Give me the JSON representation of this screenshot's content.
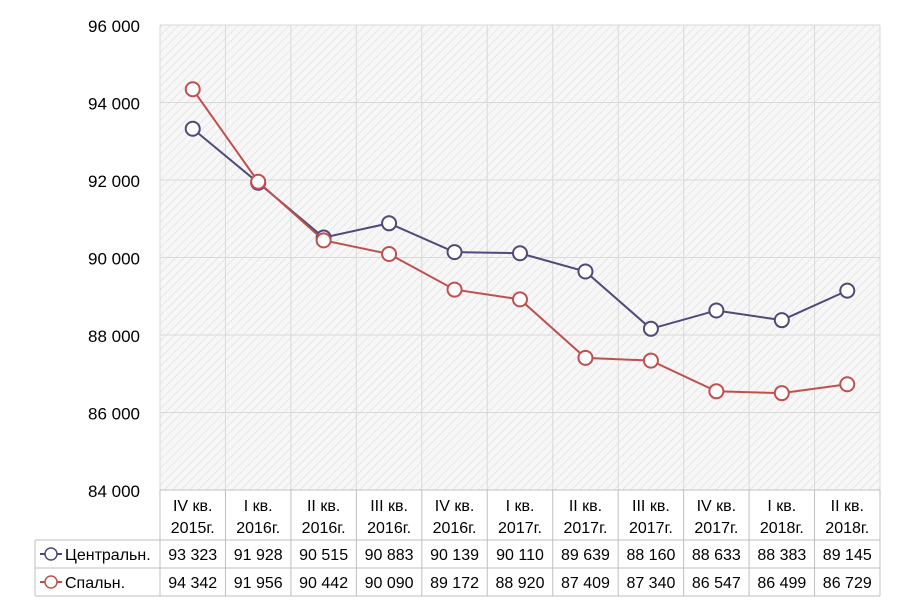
{
  "chart_data": {
    "type": "line",
    "title": "",
    "xlabel": "",
    "ylabel": "",
    "ylim": [
      84000,
      96000
    ],
    "yticks": [
      84000,
      86000,
      88000,
      90000,
      92000,
      94000,
      96000
    ],
    "ytick_labels": [
      "84 000",
      "86 000",
      "88 000",
      "90 000",
      "92 000",
      "94 000",
      "96 000"
    ],
    "grid": true,
    "legend": "data-table",
    "categories": [
      [
        "IV кв.",
        "2015г."
      ],
      [
        "I кв.",
        "2016г."
      ],
      [
        "II кв.",
        "2016г."
      ],
      [
        "III кв.",
        "2016г."
      ],
      [
        "IV кв.",
        "2016г."
      ],
      [
        "I кв.",
        "2017г."
      ],
      [
        "II кв.",
        "2017г."
      ],
      [
        "III кв.",
        "2017г."
      ],
      [
        "IV кв.",
        "2017г."
      ],
      [
        "I кв.",
        "2018г."
      ],
      [
        "II кв.",
        "2018г."
      ]
    ],
    "series": [
      {
        "name": "Центральн.",
        "color": "#4f4a7a",
        "values": [
          93323,
          91928,
          90515,
          90883,
          90139,
          90110,
          89639,
          88160,
          88633,
          88383,
          89145
        ],
        "labels": [
          "93 323",
          "91 928",
          "90 515",
          "90 883",
          "90 139",
          "90 110",
          "89 639",
          "88 160",
          "88 633",
          "88 383",
          "89 145"
        ]
      },
      {
        "name": "Спальн.",
        "color": "#c0504d",
        "values": [
          94342,
          91956,
          90442,
          90090,
          89172,
          88920,
          87409,
          87340,
          86547,
          86499,
          86729
        ],
        "labels": [
          "94 342",
          "91 956",
          "90 442",
          "90 090",
          "89 172",
          "88 920",
          "87 409",
          "87 340",
          "86 547",
          "86 499",
          "86 729"
        ]
      }
    ]
  }
}
